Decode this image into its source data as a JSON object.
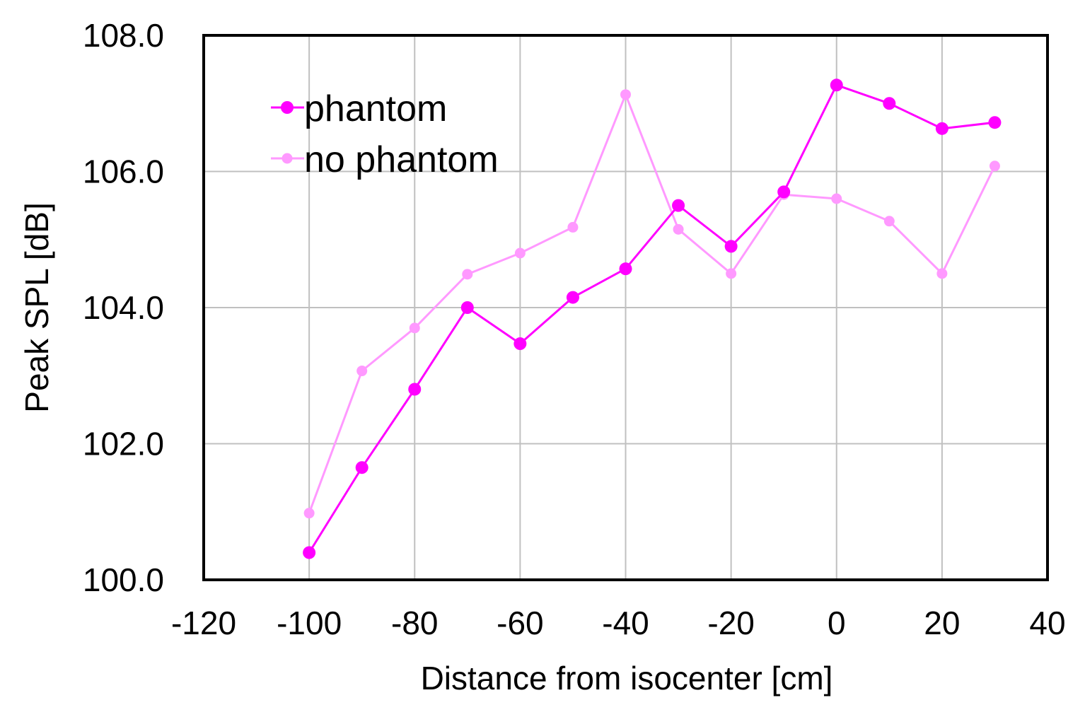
{
  "chart_data": {
    "type": "line",
    "title": "",
    "xlabel": "Distance from isocenter [cm]",
    "ylabel": "Peak SPL [dB]",
    "xlim": [
      -120,
      40
    ],
    "ylim": [
      100,
      108
    ],
    "xticks": [
      -120,
      -100,
      -80,
      -60,
      -40,
      -20,
      0,
      20,
      40
    ],
    "xtick_labels": [
      "-120",
      "-100",
      "-80",
      "-60",
      "-40",
      "-20",
      "0",
      "20",
      "40"
    ],
    "yticks": [
      100,
      102,
      104,
      106,
      108
    ],
    "ytick_labels": [
      "100.0",
      "102.0",
      "104.0",
      "106.0",
      "108.0"
    ],
    "grid": true,
    "legend_position": "top-left",
    "x": [
      -100,
      -90,
      -80,
      -70,
      -60,
      -50,
      -40,
      -30,
      -20,
      -10,
      0,
      10,
      20,
      30
    ],
    "series": [
      {
        "name": "phantom",
        "color": "#ff00ff",
        "values": [
          100.4,
          101.65,
          102.8,
          104.0,
          103.47,
          104.15,
          104.57,
          105.5,
          104.9,
          105.7,
          107.27,
          107.0,
          106.63,
          106.72
        ]
      },
      {
        "name": "no phantom",
        "color": "#ff99ff",
        "values": [
          100.98,
          103.07,
          103.7,
          104.49,
          104.8,
          105.18,
          107.13,
          105.15,
          104.5,
          105.66,
          105.6,
          105.27,
          104.5,
          106.08
        ]
      }
    ]
  }
}
